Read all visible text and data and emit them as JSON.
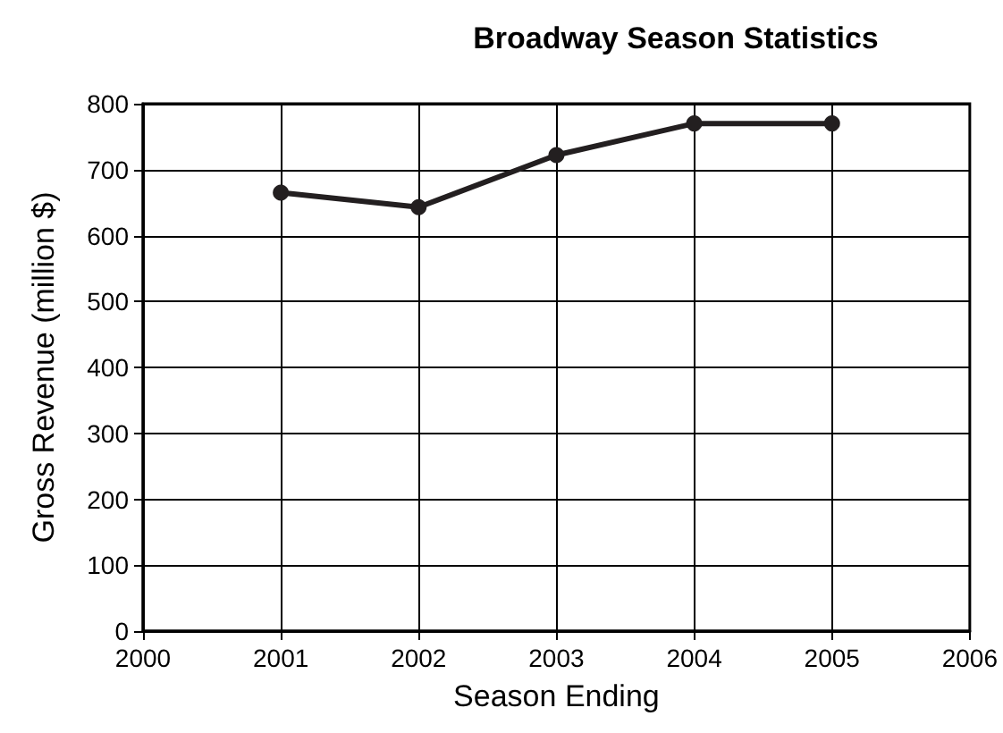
{
  "chart_data": {
    "type": "line",
    "title": "Broadway Season Statistics",
    "xlabel": "Season Ending",
    "ylabel": "Gross Revenue (million $)",
    "x": [
      2001,
      2002,
      2003,
      2004,
      2005
    ],
    "series": [
      {
        "color": "#231f20",
        "values": [
          665,
          643,
          722,
          770,
          770
        ]
      }
    ],
    "xlim": [
      2000,
      2006
    ],
    "xticks": [
      2000,
      2001,
      2002,
      2003,
      2004,
      2005,
      2006
    ],
    "ylim": [
      0,
      800
    ],
    "yticks": [
      0,
      100,
      200,
      300,
      400,
      500,
      600,
      700,
      800
    ],
    "grid": true,
    "marker": "circle",
    "line_style": "solid"
  }
}
